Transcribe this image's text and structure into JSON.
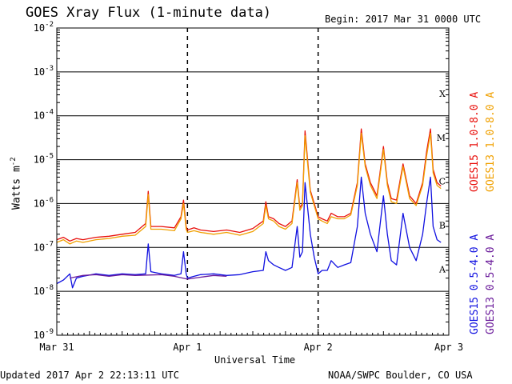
{
  "header": {
    "title": "GOES Xray Flux (1-minute data)",
    "begin": "Begin:  2017 Mar 31 0000 UTC"
  },
  "footer": {
    "updated": "Updated 2017 Apr  2 22:13:11 UTC",
    "credit": "NOAA/SWPC Boulder, CO USA"
  },
  "chart_data": {
    "type": "line",
    "ylabel": "Watts m",
    "ylabel_sup": "-2",
    "xlabel": "Universal Time",
    "yscale": "log",
    "ylim": [
      1e-09,
      0.01
    ],
    "xlim_days": [
      0,
      3
    ],
    "x_ticks": [
      {
        "label": "Mar 31",
        "day": 0
      },
      {
        "label": "Apr 1",
        "day": 1
      },
      {
        "label": "Apr 2",
        "day": 2
      },
      {
        "label": "Apr 3",
        "day": 3
      }
    ],
    "y_ticks": [
      {
        "base": "10",
        "exp": "-9",
        "value": 1e-09
      },
      {
        "base": "10",
        "exp": "-8",
        "value": 1e-08
      },
      {
        "base": "10",
        "exp": "-7",
        "value": 1e-07
      },
      {
        "base": "10",
        "exp": "-6",
        "value": 1e-06
      },
      {
        "base": "10",
        "exp": "-5",
        "value": 1e-05
      },
      {
        "base": "10",
        "exp": "-4",
        "value": 0.0001
      },
      {
        "base": "10",
        "exp": "-3",
        "value": 0.001
      },
      {
        "base": "10",
        "exp": "-2",
        "value": 0.01
      }
    ],
    "flare_classes": [
      {
        "label": "X",
        "value": 0.00032
      },
      {
        "label": "M",
        "value": 3.2e-05
      },
      {
        "label": "C",
        "value": 3.2e-06
      },
      {
        "label": "B",
        "value": 3.2e-07
      },
      {
        "label": "A",
        "value": 3.2e-08
      }
    ],
    "series": [
      {
        "name": "GOES15 1.0-8.0 A",
        "color": "#e8100c",
        "x": [
          0,
          0.05,
          0.1,
          0.15,
          0.2,
          0.3,
          0.4,
          0.5,
          0.6,
          0.68,
          0.7,
          0.72,
          0.8,
          0.9,
          0.95,
          0.97,
          0.99,
          1.0,
          1.05,
          1.1,
          1.2,
          1.3,
          1.4,
          1.5,
          1.58,
          1.6,
          1.62,
          1.66,
          1.7,
          1.75,
          1.8,
          1.84,
          1.86,
          1.88,
          1.9,
          1.94,
          1.97,
          2.0,
          2.03,
          2.07,
          2.1,
          2.15,
          2.2,
          2.25,
          2.3,
          2.33,
          2.36,
          2.4,
          2.45,
          2.5,
          2.53,
          2.56,
          2.6,
          2.65,
          2.7,
          2.75,
          2.8,
          2.83,
          2.86,
          2.88,
          2.91,
          2.94
        ],
        "y": [
          1.5e-07,
          1.7e-07,
          1.4e-07,
          1.6e-07,
          1.5e-07,
          1.7e-07,
          1.8e-07,
          2e-07,
          2.2e-07,
          3.5e-07,
          1.9e-06,
          3e-07,
          3e-07,
          2.8e-07,
          5e-07,
          1.2e-06,
          3e-07,
          2.5e-07,
          2.8e-07,
          2.5e-07,
          2.3e-07,
          2.5e-07,
          2.2e-07,
          2.7e-07,
          4e-07,
          1.1e-06,
          5e-07,
          4.5e-07,
          3.5e-07,
          3e-07,
          4e-07,
          3.5e-06,
          8e-07,
          1e-06,
          4.5e-05,
          2e-06,
          1e-06,
          5e-07,
          4.5e-07,
          4e-07,
          6e-07,
          5e-07,
          5e-07,
          6e-07,
          3e-06,
          5e-05,
          8e-06,
          3e-06,
          1.5e-06,
          2e-05,
          3e-06,
          1.3e-06,
          1.2e-06,
          8e-06,
          1.5e-06,
          1e-06,
          3e-06,
          1.5e-05,
          5e-05,
          6e-06,
          3e-06,
          2.5e-06
        ]
      },
      {
        "name": "GOES13 1.0-8.0 A",
        "color": "#f0a000",
        "x": [
          0,
          0.05,
          0.1,
          0.15,
          0.2,
          0.3,
          0.4,
          0.5,
          0.6,
          0.68,
          0.7,
          0.72,
          0.8,
          0.9,
          0.95,
          0.97,
          0.99,
          1.0,
          1.05,
          1.1,
          1.2,
          1.3,
          1.4,
          1.5,
          1.58,
          1.6,
          1.62,
          1.66,
          1.7,
          1.75,
          1.8,
          1.84,
          1.86,
          1.88,
          1.9,
          1.94,
          1.97,
          2.0,
          2.03,
          2.07,
          2.1,
          2.15,
          2.2,
          2.25,
          2.3,
          2.33,
          2.36,
          2.4,
          2.45,
          2.5,
          2.53,
          2.56,
          2.6,
          2.65,
          2.7,
          2.75,
          2.8,
          2.83,
          2.86,
          2.88,
          2.91,
          2.94
        ],
        "y": [
          1.3e-07,
          1.5e-07,
          1.2e-07,
          1.4e-07,
          1.3e-07,
          1.5e-07,
          1.6e-07,
          1.8e-07,
          1.9e-07,
          3e-07,
          1.6e-06,
          2.6e-07,
          2.6e-07,
          2.4e-07,
          4.5e-07,
          1e-06,
          2.6e-07,
          2.2e-07,
          2.4e-07,
          2.2e-07,
          2e-07,
          2.2e-07,
          1.9e-07,
          2.3e-07,
          3.5e-07,
          9e-07,
          4.5e-07,
          4e-07,
          3e-07,
          2.6e-07,
          3.5e-07,
          3e-06,
          7e-07,
          9e-07,
          3.5e-05,
          1.8e-06,
          9e-07,
          4.5e-07,
          4e-07,
          3.5e-07,
          5e-07,
          4.5e-07,
          4.5e-07,
          5.5e-07,
          2.6e-06,
          4e-05,
          7e-06,
          2.6e-06,
          1.3e-06,
          1.7e-05,
          2.6e-06,
          1.1e-06,
          1e-06,
          7e-06,
          1.3e-06,
          9e-07,
          2.6e-06,
          1.2e-05,
          4e-05,
          5e-06,
          2.6e-06,
          2.2e-06
        ]
      },
      {
        "name": "GOES15 0.5-4.0 A",
        "color": "#1010e0",
        "x": [
          0,
          0.05,
          0.1,
          0.12,
          0.15,
          0.2,
          0.3,
          0.4,
          0.5,
          0.6,
          0.68,
          0.7,
          0.72,
          0.8,
          0.9,
          0.95,
          0.97,
          0.99,
          1.0,
          1.05,
          1.1,
          1.2,
          1.3,
          1.4,
          1.5,
          1.58,
          1.6,
          1.62,
          1.66,
          1.7,
          1.75,
          1.8,
          1.84,
          1.86,
          1.88,
          1.9,
          1.94,
          1.97,
          2.0,
          2.03,
          2.07,
          2.1,
          2.15,
          2.2,
          2.25,
          2.3,
          2.33,
          2.36,
          2.4,
          2.45,
          2.5,
          2.53,
          2.56,
          2.6,
          2.65,
          2.7,
          2.75,
          2.8,
          2.83,
          2.86,
          2.88,
          2.91,
          2.94
        ],
        "y": [
          1.5e-08,
          1.8e-08,
          2.5e-08,
          1.2e-08,
          2e-08,
          2.2e-08,
          2.5e-08,
          2.3e-08,
          2.5e-08,
          2.4e-08,
          2.5e-08,
          1.2e-07,
          2.8e-08,
          2.5e-08,
          2.3e-08,
          2.5e-08,
          8e-08,
          2.5e-08,
          2e-08,
          2.2e-08,
          2.4e-08,
          2.5e-08,
          2.3e-08,
          2.4e-08,
          2.8e-08,
          3e-08,
          8e-08,
          5e-08,
          4e-08,
          3.5e-08,
          3e-08,
          3.5e-08,
          3e-07,
          6e-08,
          8e-08,
          3e-06,
          2e-07,
          6e-08,
          2.5e-08,
          3e-08,
          3e-08,
          5e-08,
          3.5e-08,
          4e-08,
          4.5e-08,
          3e-07,
          4e-06,
          6e-07,
          2e-07,
          8e-08,
          1.5e-06,
          2e-07,
          5e-08,
          4e-08,
          6e-07,
          1e-07,
          5e-08,
          2e-07,
          1e-06,
          4e-06,
          3e-07,
          1.5e-07,
          1.3e-07
        ]
      },
      {
        "name": "GOES13 0.5-4.0 A",
        "color": "#6a1a9a",
        "x": [
          0.1,
          0.2,
          0.3,
          0.4,
          0.5,
          0.6,
          0.8,
          0.9,
          1.0,
          1.1,
          1.2,
          1.3
        ],
        "y": [
          2e-08,
          2.3e-08,
          2.4e-08,
          2.2e-08,
          2.4e-08,
          2.3e-08,
          2.4e-08,
          2.2e-08,
          1.9e-08,
          2.1e-08,
          2.3e-08,
          2.2e-08
        ]
      }
    ]
  }
}
